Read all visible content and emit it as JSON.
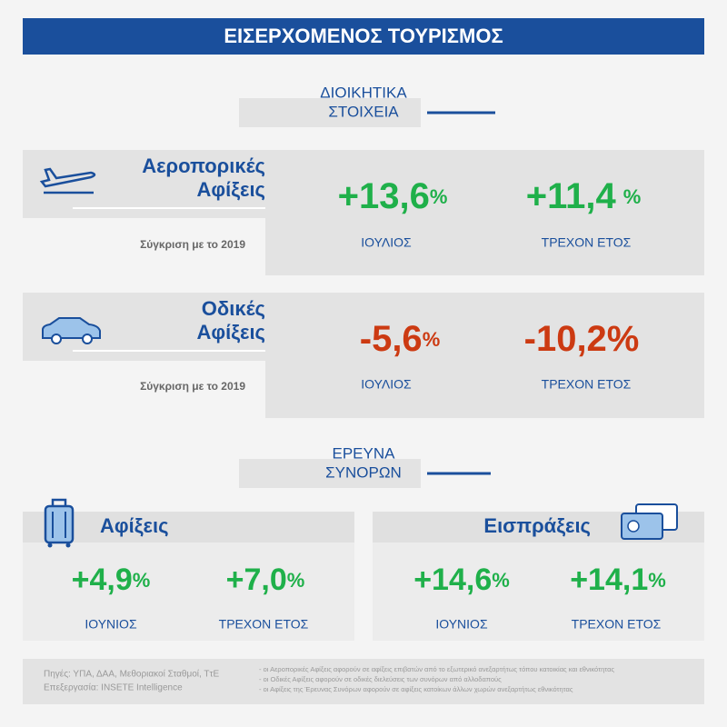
{
  "header": {
    "title": "ΕΙΣΕΡΧΟΜΕΝΟΣ ΤΟΥΡΙΣΜΟΣ"
  },
  "sections": [
    {
      "title_lines": [
        "ΔΙΟΙΚΗΤΙΚΑ",
        "ΣΤΟΙΧΕΙΑ"
      ],
      "cards": [
        {
          "title_lines": [
            "Αεροπορικές",
            "Αφίξεις"
          ],
          "note": "Σύγκριση με το 2019",
          "stats": [
            {
              "value": "+13,6",
              "unit": "%",
              "label": "ΙΟΥΛΙΟΣ"
            },
            {
              "value": "+11,4",
              "unit": "%",
              "label": "ΤΡΕΧΟΝ ΕΤΟΣ"
            }
          ]
        },
        {
          "title_lines": [
            "Οδικές",
            "Αφίξεις"
          ],
          "note": "Σύγκριση με το 2019",
          "stats": [
            {
              "value": "-5,6",
              "unit": "%",
              "label": "ΙΟΥΛΙΟΣ"
            },
            {
              "value": "-10,2",
              "unit": "%",
              "label": "ΤΡΕΧΟΝ ΕΤΟΣ"
            }
          ]
        }
      ]
    },
    {
      "title_lines": [
        "ΕΡΕΥΝΑ",
        "ΣΥΝΟΡΩΝ"
      ],
      "cards": [
        {
          "title": "Αφίξεις",
          "stats": [
            {
              "value": "+4,9",
              "unit": "%",
              "label": "ΙΟΥΝΙΟΣ"
            },
            {
              "value": "+7,0",
              "unit": "%",
              "label": "ΤΡΕΧΟΝ ΕΤΟΣ"
            }
          ]
        },
        {
          "title": "Εισπράξεις",
          "stats": [
            {
              "value": "+14,6",
              "unit": "%",
              "label": "ΙΟΥΝΙΟΣ"
            },
            {
              "value": "+14,1",
              "unit": "%",
              "label": "ΤΡΕΧΟΝ ΕΤΟΣ"
            }
          ]
        }
      ]
    }
  ],
  "footer": {
    "sources": [
      "Πηγές:  ΥΠΑ, ΔΑΑ, Μεθοριακοί Σταθμοί, ΤτΕ",
      "Επεξεργασία:  INSETE Intelligence"
    ],
    "notes": [
      "- οι Αεροπορικές Αφίξεις αφορούν σε αφίξεις επιβατών από το εξωτερικό ανεξαρτήτως τόπου κατοικίας και εθνικότητας",
      "- οι Οδικές Αφίξεις αφορούν σε οδικές διελεύσεις των συνόρων από αλλοδαπούς",
      "- οι Αφίξεις της Έρευνας Συνόρων αφορούν σε αφίξεις κατοίκων άλλων χωρών ανεξαρτήτως εθνικότητας"
    ]
  }
}
